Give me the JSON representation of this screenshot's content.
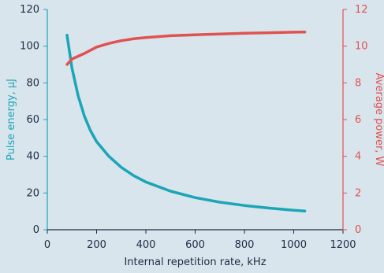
{
  "chart_data": {
    "type": "line",
    "title": "",
    "xlabel": "Internal repetition rate, kHz",
    "ylabel_left": "Pulse energy, µJ",
    "ylabel_right": "Average power, W",
    "xlim": [
      0,
      1200
    ],
    "ylim_left": [
      0,
      120
    ],
    "ylim_right": [
      0,
      12
    ],
    "x_ticks": [
      "0",
      "200",
      "400",
      "600",
      "800",
      "1000",
      "1200"
    ],
    "y_left_ticks": [
      "0",
      "20",
      "40",
      "60",
      "80",
      "100",
      "120"
    ],
    "y_right_ticks": [
      "0",
      "2",
      "4",
      "6",
      "8",
      "10",
      "12"
    ],
    "grid": false,
    "legend": "none",
    "series": [
      {
        "axis": "left",
        "color": "#1aa6b7",
        "x": [
          80,
          100,
          125,
          150,
          175,
          200,
          250,
          300,
          350,
          400,
          500,
          600,
          700,
          800,
          900,
          1000,
          1045
        ],
        "y": [
          106,
          88,
          73,
          62,
          54,
          48,
          40,
          34,
          29.5,
          26,
          21,
          17.5,
          15,
          13.2,
          11.8,
          10.6,
          10.2
        ]
      },
      {
        "axis": "right",
        "color": "#e05252",
        "x": [
          80,
          100,
          150,
          200,
          250,
          300,
          350,
          400,
          500,
          600,
          700,
          800,
          900,
          1000,
          1045
        ],
        "y": [
          9.0,
          9.3,
          9.6,
          9.95,
          10.15,
          10.3,
          10.4,
          10.47,
          10.57,
          10.62,
          10.66,
          10.7,
          10.73,
          10.76,
          10.77
        ]
      }
    ]
  }
}
